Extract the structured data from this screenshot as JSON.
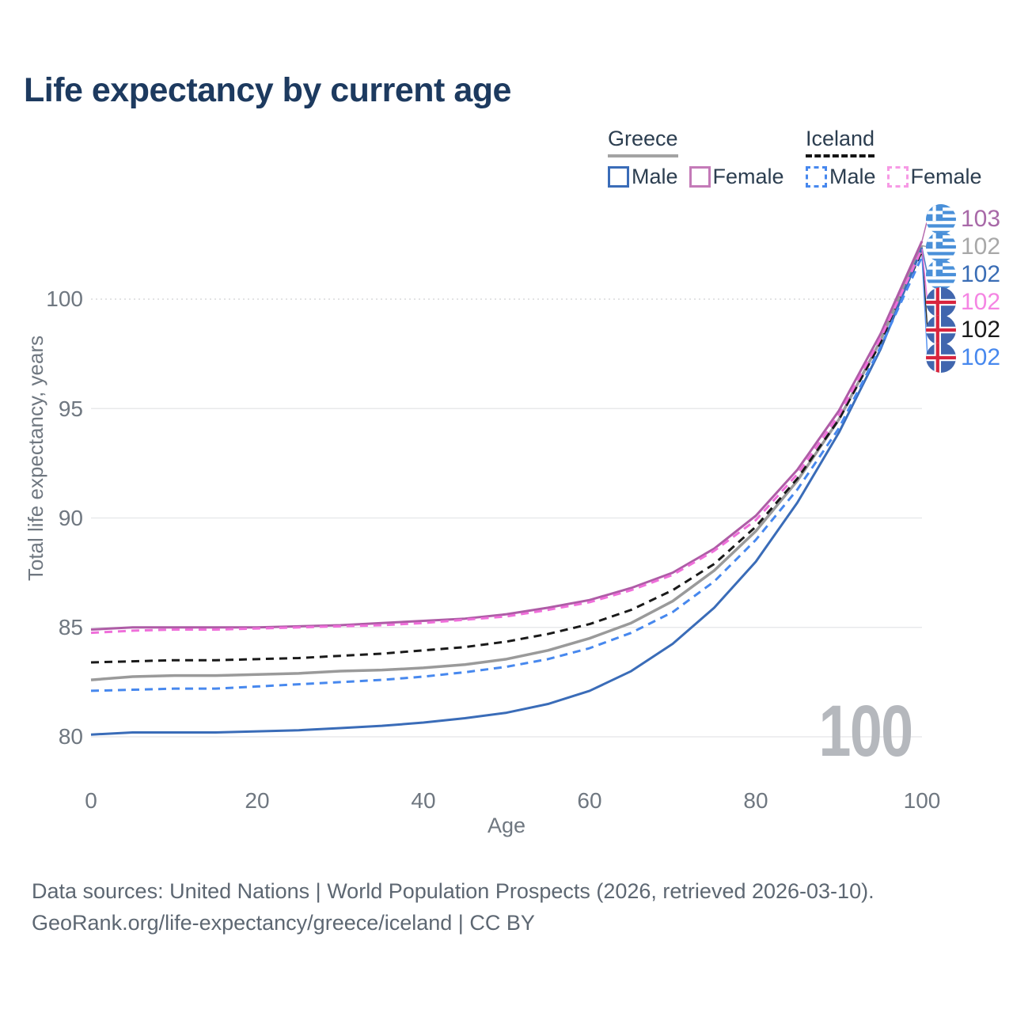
{
  "title": "Life expectancy by current age",
  "legend": {
    "groups": [
      {
        "country": "Greece",
        "line_style": "solid",
        "underline_color": "#a3a3a3",
        "items": [
          {
            "label": "Male",
            "color": "#3a6cb8"
          },
          {
            "label": "Female",
            "color": "#c47ab8"
          }
        ]
      },
      {
        "country": "Iceland",
        "line_style": "dashed",
        "underline_color": "#141414",
        "items": [
          {
            "label": "Male",
            "color": "#4788ee"
          },
          {
            "label": "Female",
            "color": "#f79ae5"
          }
        ]
      }
    ]
  },
  "chart_data": {
    "type": "line",
    "title": "Life expectancy by current age",
    "xlabel": "Age",
    "ylabel": "Total life expectancy, years",
    "xlim": [
      0,
      100
    ],
    "ylim": [
      79,
      103.5
    ],
    "grid": "horizontal",
    "xticks": [
      0,
      20,
      40,
      60,
      80,
      100
    ],
    "yticks": [
      80,
      85,
      90,
      95,
      100
    ],
    "xtick_labels": [
      "0",
      "20",
      "40",
      "60",
      "80",
      "100"
    ],
    "ytick_labels": [
      "80",
      "85",
      "90",
      "95",
      "100"
    ],
    "watermark": "100",
    "x": [
      0,
      5,
      10,
      15,
      20,
      25,
      30,
      35,
      40,
      45,
      50,
      55,
      60,
      65,
      70,
      75,
      80,
      85,
      90,
      95,
      100
    ],
    "series": [
      {
        "name": "Greece",
        "country": "Greece",
        "group": "total",
        "color": "#9a9a9a",
        "dash": "solid",
        "width": 3.5,
        "label_row": 1,
        "end_label": "102",
        "values": [
          82.6,
          82.75,
          82.8,
          82.8,
          82.85,
          82.9,
          83.0,
          83.05,
          83.15,
          83.3,
          83.55,
          83.95,
          84.5,
          85.2,
          86.2,
          87.6,
          89.4,
          91.7,
          94.5,
          98.1,
          102.45
        ]
      },
      {
        "name": "Iceland",
        "country": "Iceland",
        "group": "total",
        "color": "#1a1a1a",
        "dash": "dashed",
        "width": 3,
        "label_row": 4,
        "end_label": "102",
        "values": [
          83.4,
          83.45,
          83.5,
          83.5,
          83.55,
          83.6,
          83.7,
          83.8,
          83.95,
          84.1,
          84.35,
          84.7,
          85.15,
          85.8,
          86.7,
          87.9,
          89.6,
          91.8,
          94.5,
          98.0,
          102.2
        ]
      },
      {
        "name": "Greece Male",
        "country": "Greece",
        "group": "male",
        "color": "#3a6cb8",
        "dash": "solid",
        "width": 3,
        "label_row": 2,
        "end_label": "102",
        "values": [
          80.1,
          80.2,
          80.2,
          80.2,
          80.25,
          80.3,
          80.4,
          80.5,
          80.65,
          80.85,
          81.1,
          81.5,
          82.1,
          83.0,
          84.25,
          85.9,
          88.0,
          90.7,
          93.9,
          97.7,
          102.35
        ]
      },
      {
        "name": "Iceland Male",
        "country": "Iceland",
        "group": "male",
        "color": "#4788ee",
        "dash": "dashed",
        "width": 3,
        "label_row": 5,
        "end_label": "102",
        "values": [
          82.1,
          82.15,
          82.2,
          82.2,
          82.3,
          82.4,
          82.5,
          82.6,
          82.75,
          82.95,
          83.2,
          83.55,
          84.05,
          84.75,
          85.7,
          87.1,
          89.0,
          91.3,
          94.1,
          97.8,
          101.95
        ]
      },
      {
        "name": "Greece Female",
        "country": "Greece",
        "group": "female",
        "color": "#ae5ca6",
        "dash": "solid",
        "width": 3,
        "label_row": 0,
        "end_label": "103",
        "values": [
          84.9,
          85.0,
          85.0,
          85.0,
          85.0,
          85.05,
          85.1,
          85.2,
          85.3,
          85.4,
          85.6,
          85.9,
          86.25,
          86.8,
          87.5,
          88.6,
          90.1,
          92.2,
          94.9,
          98.4,
          102.65
        ]
      },
      {
        "name": "Iceland Female",
        "country": "Iceland",
        "group": "female",
        "color": "#ef6fda",
        "dash": "dashed",
        "width": 3,
        "label_row": 3,
        "end_label": "102",
        "values": [
          84.75,
          84.85,
          84.9,
          84.9,
          84.95,
          85.0,
          85.05,
          85.1,
          85.2,
          85.35,
          85.5,
          85.8,
          86.15,
          86.7,
          87.4,
          88.5,
          89.9,
          92.0,
          94.7,
          98.2,
          102.3
        ]
      }
    ]
  },
  "end_labels": [
    {
      "flag": "greece",
      "series": "Greece Female",
      "value": "103",
      "color": "#a869a8"
    },
    {
      "flag": "greece",
      "series": "Greece",
      "value": "102",
      "color": "#a8a8a8"
    },
    {
      "flag": "greece",
      "series": "Greece Male",
      "value": "102",
      "color": "#3a6db5"
    },
    {
      "flag": "iceland",
      "series": "Iceland Female",
      "value": "102",
      "color": "#f585e3"
    },
    {
      "flag": "iceland",
      "series": "Iceland",
      "value": "102",
      "color": "#1a1a1a"
    },
    {
      "flag": "iceland",
      "series": "Iceland Male",
      "value": "102",
      "color": "#4788ee"
    }
  ],
  "footer": {
    "line1": "Data sources: United Nations | World Population Prospects (2026, retrieved 2026-03-10).",
    "line2": "GeoRank.org/life-expectancy/greece/iceland | CC BY"
  }
}
